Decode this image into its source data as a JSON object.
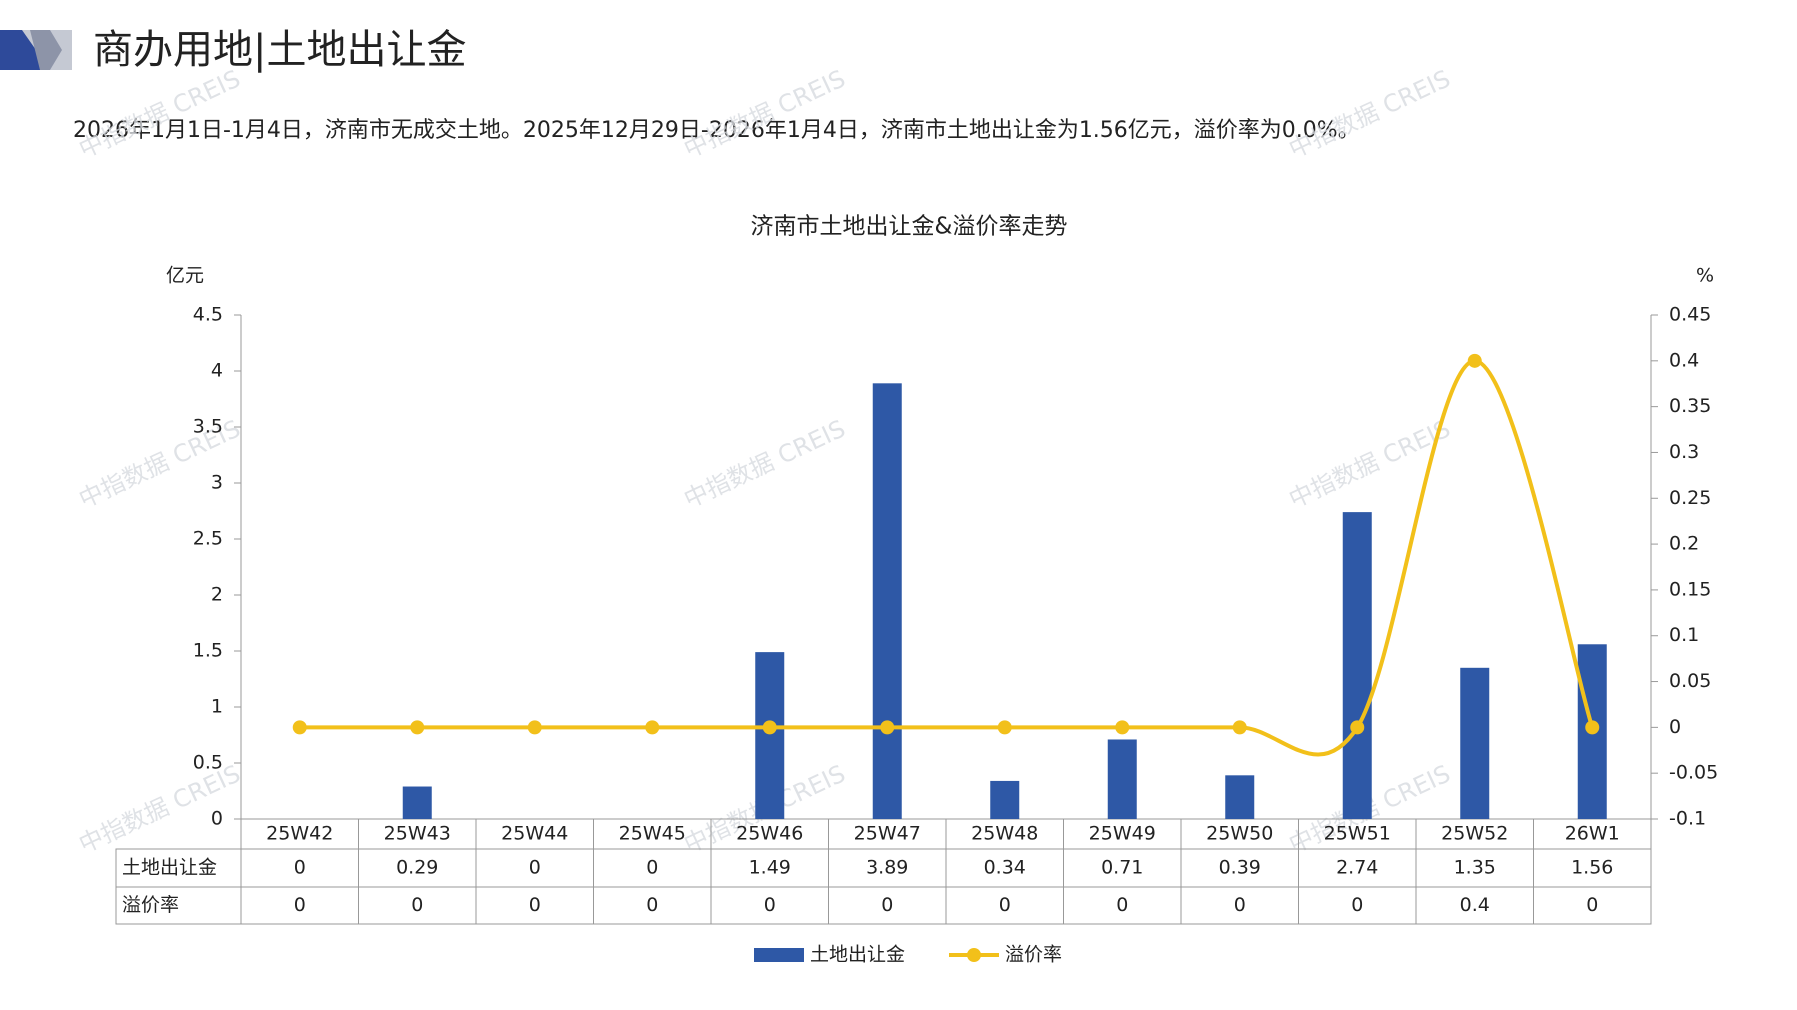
{
  "header": {
    "title": "商办用地|土地出让金",
    "description": "2026年1月1日-1月4日，济南市无成交土地。2025年12月29日-2026年1月4日，济南市土地出让金为1.56亿元，溢价率为0.0%。",
    "watermark": "中指数据 CREIS"
  },
  "chart_data": {
    "type": "bar",
    "title": "济南市土地出让金&溢价率走势",
    "y_label": "亿元",
    "y2_label": "%",
    "categories": [
      "25W42",
      "25W43",
      "25W44",
      "25W45",
      "25W46",
      "25W47",
      "25W48",
      "25W49",
      "25W50",
      "25W51",
      "25W52",
      "26W1"
    ],
    "series": [
      {
        "name": "土地出让金",
        "color": "#2e58a6",
        "type": "bar",
        "values": [
          0,
          0.29,
          0,
          0,
          1.49,
          3.89,
          0.34,
          0.71,
          0.39,
          2.74,
          1.35,
          1.56
        ]
      },
      {
        "name": "溢价率",
        "color": "#f2c01a",
        "type": "line",
        "axis": "y2",
        "values": [
          0,
          0,
          0,
          0,
          0,
          0,
          0,
          0,
          0,
          0,
          0.4,
          0
        ]
      }
    ],
    "ylim": [
      0,
      4.5
    ],
    "yticks": [
      0,
      0.5,
      1,
      1.5,
      2,
      2.5,
      3,
      3.5,
      4,
      4.5
    ],
    "y2lim": [
      -0.1,
      0.45
    ],
    "y2ticks": [
      -0.1,
      -0.05,
      0,
      0.05,
      0.1,
      0.15,
      0.2,
      0.25,
      0.3,
      0.35,
      0.4,
      0.45
    ],
    "legend": "bottom",
    "data_table": true
  }
}
